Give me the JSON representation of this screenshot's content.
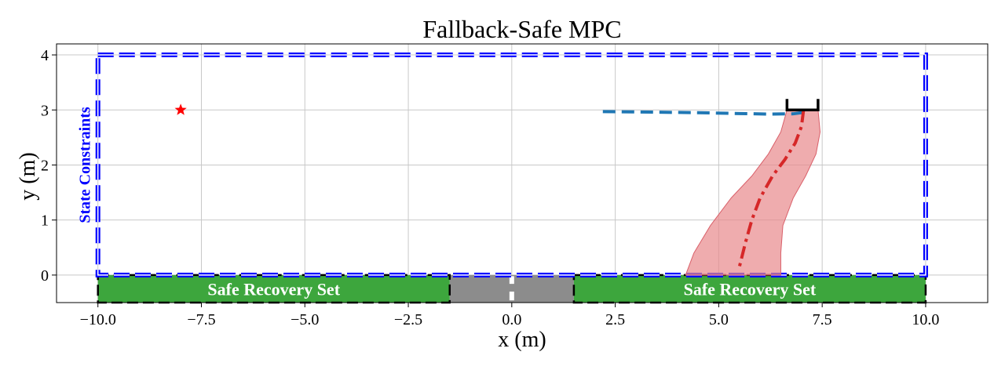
{
  "chart_data": {
    "type": "line",
    "title": "Fallback-Safe MPC",
    "xlabel": "x (m)",
    "ylabel": "y (m)",
    "xlim": [
      -11.0,
      11.5
    ],
    "ylim": [
      -0.5,
      4.2
    ],
    "grid": true,
    "x_ticks": [
      -10.0,
      -7.5,
      -5.0,
      -2.5,
      0.0,
      2.5,
      5.0,
      7.5,
      10.0
    ],
    "x_tick_labels": [
      "−10.0",
      "−7.5",
      "−5.0",
      "−2.5",
      "0.0",
      "2.5",
      "5.0",
      "7.5",
      "10.0"
    ],
    "y_ticks": [
      0,
      1,
      2,
      3,
      4
    ],
    "y_tick_labels": [
      "0",
      "1",
      "2",
      "3",
      "4"
    ],
    "state_constraints": {
      "label": "State Constraints",
      "x": [
        -10.0,
        10.0
      ],
      "y": [
        0.0,
        4.0
      ],
      "color": "#0000ff"
    },
    "safe_recovery_sets": [
      {
        "label": "Safe Recovery Set",
        "x": [
          -10.0,
          -1.5
        ],
        "y": [
          -0.5,
          0.0
        ],
        "color": "#3da63d"
      },
      {
        "label": "Safe Recovery Set",
        "x": [
          1.5,
          10.0
        ],
        "y": [
          -0.5,
          0.0
        ],
        "color": "#3da63d"
      }
    ],
    "gap_region": {
      "x": [
        -1.5,
        1.5
      ],
      "y": [
        -0.5,
        0.0
      ],
      "color": "#8c8c8c"
    },
    "goal": {
      "x": -8.0,
      "y": 3.0,
      "color": "#ff0000"
    },
    "parking_bracket": {
      "x": [
        6.65,
        7.4
      ],
      "y": [
        3.0,
        3.2
      ],
      "color": "#000000"
    },
    "series": [
      {
        "style": "dashed",
        "color": "#1f77b4",
        "x": [
          2.2,
          3.5,
          4.5,
          5.5,
          6.2,
          6.8,
          7.1
        ],
        "y": [
          2.97,
          2.96,
          2.95,
          2.935,
          2.925,
          2.93,
          2.96
        ]
      },
      {
        "style": "dashdot",
        "color": "#d62728",
        "x": [
          7.05,
          7.0,
          6.85,
          6.6,
          6.3,
          6.0,
          5.8,
          5.65,
          5.55,
          5.5
        ],
        "y": [
          3.0,
          2.7,
          2.4,
          2.1,
          1.8,
          1.4,
          1.0,
          0.6,
          0.3,
          0.15
        ]
      }
    ],
    "uncertainty_band": {
      "color": "#e8898c",
      "left_x": [
        6.65,
        6.5,
        6.2,
        5.8,
        5.3,
        4.8,
        4.4,
        4.2
      ],
      "left_y": [
        3.0,
        2.6,
        2.2,
        1.8,
        1.4,
        0.9,
        0.4,
        0.0
      ],
      "right_x": [
        7.4,
        7.45,
        7.35,
        7.1,
        6.8,
        6.55,
        6.5,
        6.5
      ],
      "right_y": [
        3.0,
        2.6,
        2.2,
        1.8,
        1.4,
        0.9,
        0.4,
        0.0
      ]
    }
  }
}
